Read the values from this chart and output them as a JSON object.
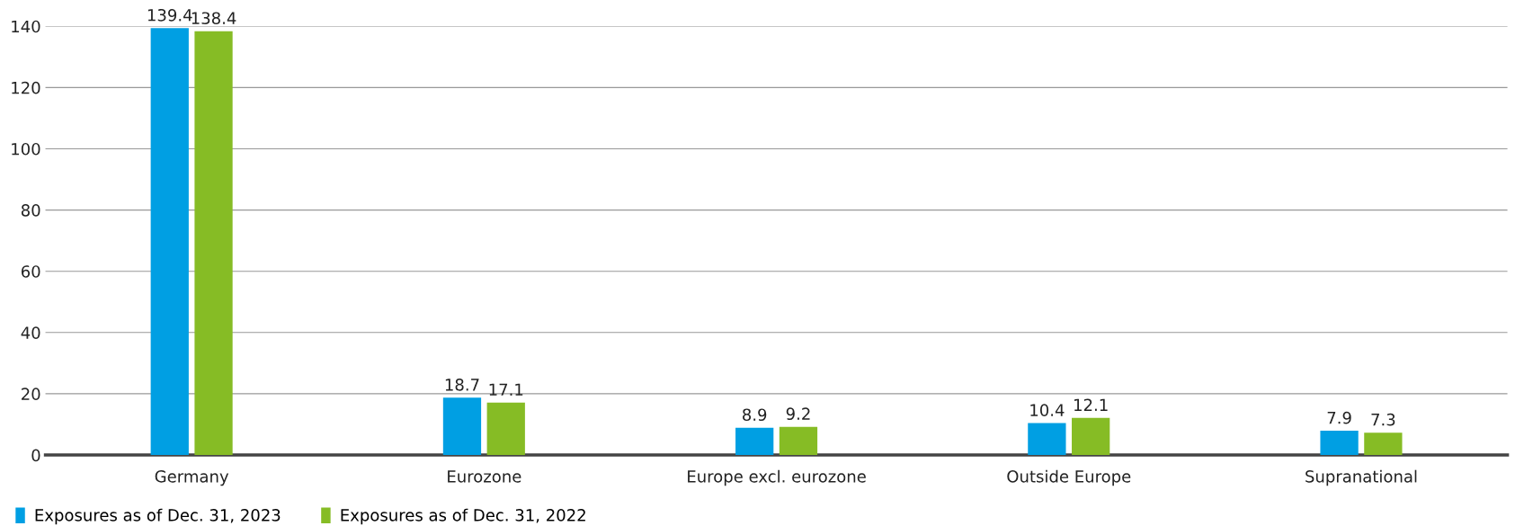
{
  "chart_data": {
    "type": "bar",
    "categories": [
      "Germany",
      "Eurozone",
      "Europe excl. eurozone",
      "Outside Europe",
      "Supranational"
    ],
    "series": [
      {
        "name": "Exposures as of Dec. 31, 2023",
        "color": "#009fe3",
        "values": [
          139.4,
          18.7,
          8.9,
          10.4,
          7.9
        ]
      },
      {
        "name": "Exposures as of Dec. 31, 2022",
        "color": "#86bc25",
        "values": [
          138.4,
          17.1,
          9.2,
          12.1,
          7.3
        ]
      }
    ],
    "ylim": [
      0,
      140
    ],
    "yticks": [
      0,
      20,
      40,
      60,
      80,
      100,
      120,
      140
    ],
    "grid": "y",
    "legend": "bottom left",
    "data_labels": true
  }
}
